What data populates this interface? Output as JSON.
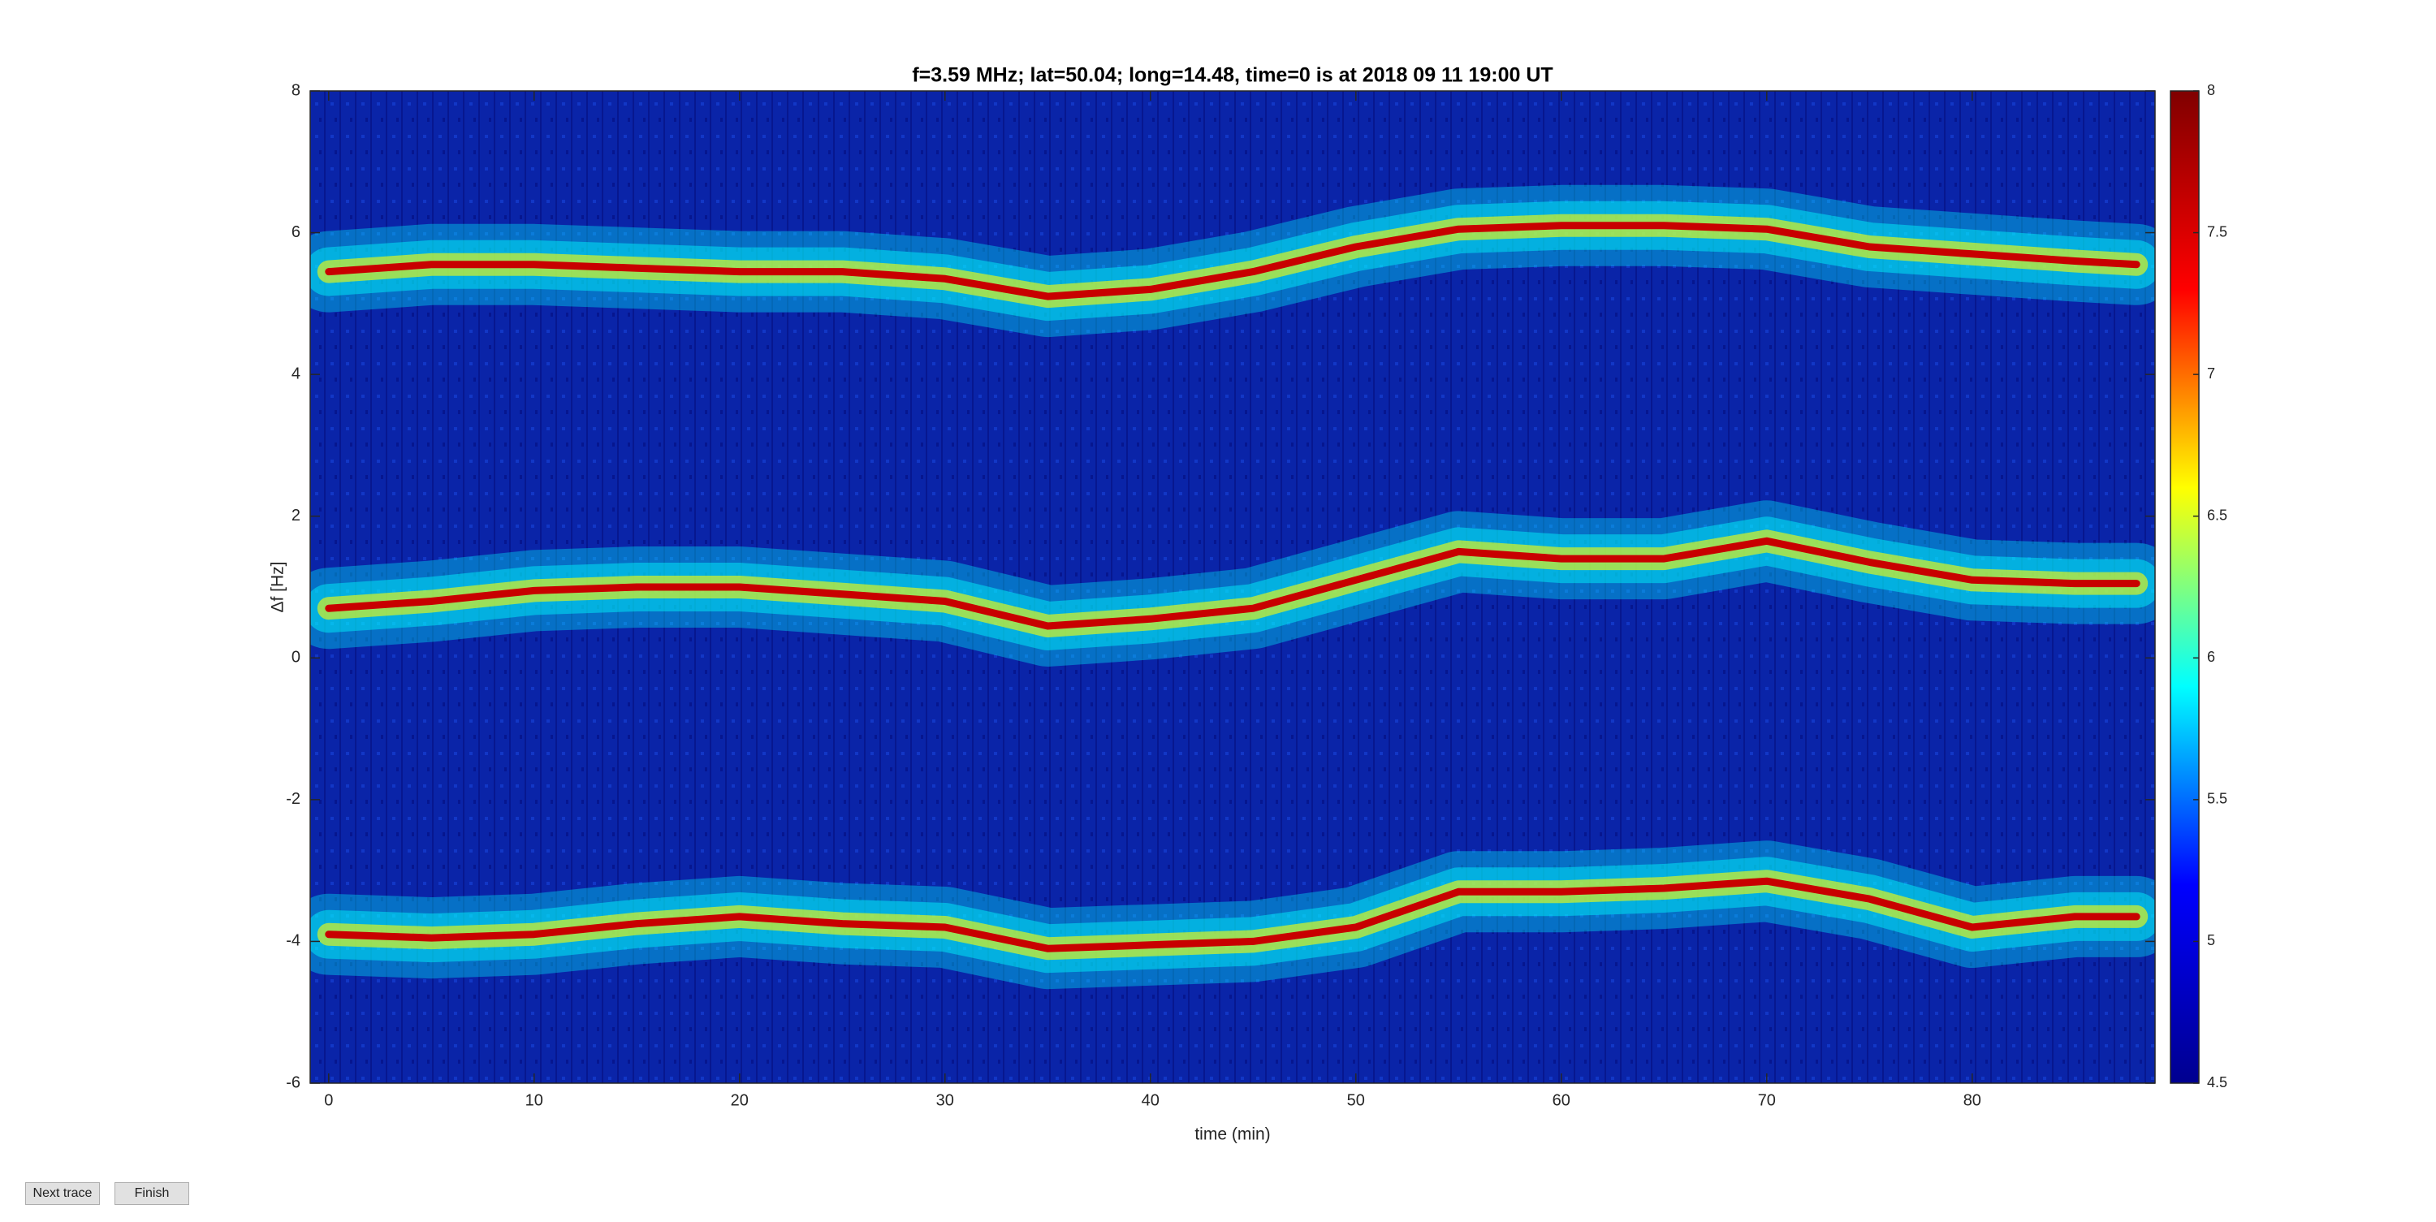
{
  "chart_data": {
    "type": "spectrogram",
    "title": "f=3.59 MHz;  lat=50.04; long=14.48, time=0 is at 2018 09 11 19:00 UT",
    "x_label": "time (min)",
    "y_label": "Δf [Hz]",
    "x": [
      0,
      5,
      10,
      15,
      20,
      25,
      30,
      35,
      40,
      45,
      50,
      55,
      60,
      65,
      70,
      75,
      80,
      85,
      88
    ],
    "series": [
      {
        "color": "#c80000",
        "values": [
          5.45,
          5.55,
          5.55,
          5.5,
          5.45,
          5.45,
          5.35,
          5.1,
          5.2,
          5.45,
          5.8,
          6.05,
          6.1,
          6.1,
          6.05,
          5.8,
          5.7,
          5.6,
          5.55
        ]
      },
      {
        "color": "#c80000",
        "values": [
          0.7,
          0.8,
          0.95,
          1.0,
          1.0,
          0.9,
          0.8,
          0.45,
          0.55,
          0.7,
          1.1,
          1.5,
          1.4,
          1.4,
          1.65,
          1.35,
          1.1,
          1.05,
          1.05
        ]
      },
      {
        "color": "#c80000",
        "values": [
          -3.9,
          -3.95,
          -3.9,
          -3.75,
          -3.65,
          -3.75,
          -3.8,
          -4.1,
          -4.05,
          -4.0,
          -3.8,
          -3.3,
          -3.3,
          -3.25,
          -3.15,
          -3.4,
          -3.8,
          -3.65,
          -3.65
        ]
      }
    ],
    "xlim": [
      -0.9,
      88.9
    ],
    "xticks": [
      0,
      10,
      20,
      30,
      40,
      50,
      60,
      70,
      80
    ],
    "ylim": [
      -6,
      8
    ],
    "yticks": [
      -6,
      -4,
      -2,
      0,
      2,
      4,
      6,
      8
    ],
    "clim": [
      4.5,
      8
    ],
    "cticks": [
      4.5,
      5,
      5.5,
      6,
      6.5,
      7,
      7.5,
      8
    ],
    "colormap": [
      "#00008f",
      "#0000ff",
      "#00ffff",
      "#ffff00",
      "#ff0000",
      "#800000"
    ],
    "background": "#0a24a8"
  },
  "ui": {
    "buttons": [
      "Next trace",
      "Finish"
    ]
  }
}
